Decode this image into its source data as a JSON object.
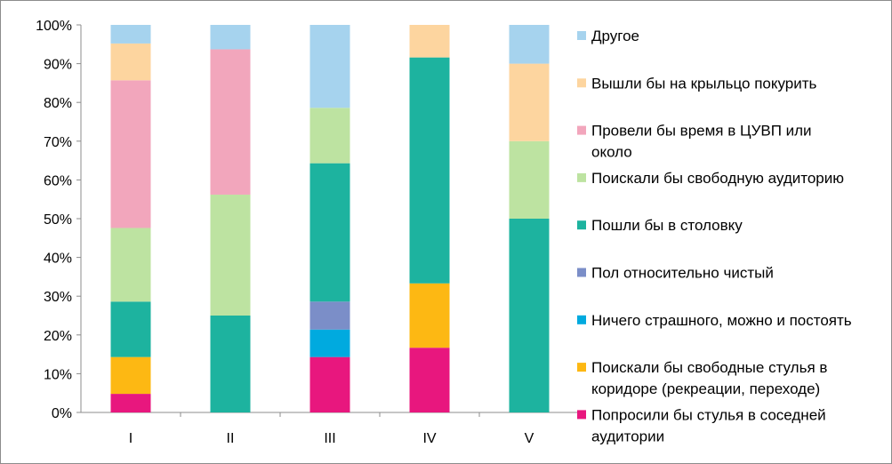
{
  "chart_data": {
    "type": "bar",
    "stacked": true,
    "normalized": true,
    "categories": [
      "I",
      "II",
      "III",
      "IV",
      "V"
    ],
    "y_ticks": [
      "0%",
      "10%",
      "20%",
      "30%",
      "40%",
      "50%",
      "60%",
      "70%",
      "80%",
      "90%",
      "100%"
    ],
    "ylim": [
      0,
      100
    ],
    "legend_position": "right",
    "series": [
      {
        "name": "Попросили бы стулья в соседней аудитории",
        "lines": [
          "Попросили бы стулья в соседней",
          "аудитории"
        ],
        "color": "#e8177e",
        "values": [
          4.8,
          0,
          14.3,
          16.7,
          0
        ]
      },
      {
        "name": "Поискали бы свободные стулья в коридоре (рекреации, переходе)",
        "lines": [
          "Поискали бы свободные стулья в",
          "коридоре (рекреации, переходе)"
        ],
        "color": "#fdb813",
        "values": [
          9.5,
          0,
          0,
          16.6,
          0
        ]
      },
      {
        "name": "Ничего страшного, можно и постоять",
        "lines": [
          "Ничего страшного, можно и постоять"
        ],
        "color": "#00aadf",
        "values": [
          0,
          0,
          7.1,
          0,
          0
        ]
      },
      {
        "name": "Пол относительно чистый",
        "lines": [
          "Пол относительно чистый"
        ],
        "color": "#7b8ec8",
        "values": [
          0,
          0,
          7.2,
          0,
          0
        ]
      },
      {
        "name": "Пошли бы в столовку",
        "lines": [
          "Пошли бы в столовку"
        ],
        "color": "#1db39f",
        "values": [
          14.3,
          25,
          35.7,
          58.3,
          50
        ]
      },
      {
        "name": "Поискали бы свободную аудиторию",
        "lines": [
          "Поискали бы свободную аудиторию"
        ],
        "color": "#bde3a1",
        "values": [
          19,
          31.2,
          14.3,
          0,
          20
        ]
      },
      {
        "name": "Провели бы время в ЦУВП или около",
        "lines": [
          "Провели бы время в ЦУВП или",
          "около"
        ],
        "color": "#f2a6bc",
        "values": [
          38.1,
          37.5,
          0,
          0,
          0
        ]
      },
      {
        "name": "Вышли бы на крыльцо покурить",
        "lines": [
          "Вышли бы на крыльцо покурить"
        ],
        "color": "#fdd59f",
        "values": [
          9.5,
          0,
          0,
          8.4,
          20
        ]
      },
      {
        "name": "Другое",
        "lines": [
          "Другое"
        ],
        "color": "#a6d3ee",
        "values": [
          4.8,
          6.3,
          21.4,
          0,
          10
        ]
      }
    ]
  }
}
